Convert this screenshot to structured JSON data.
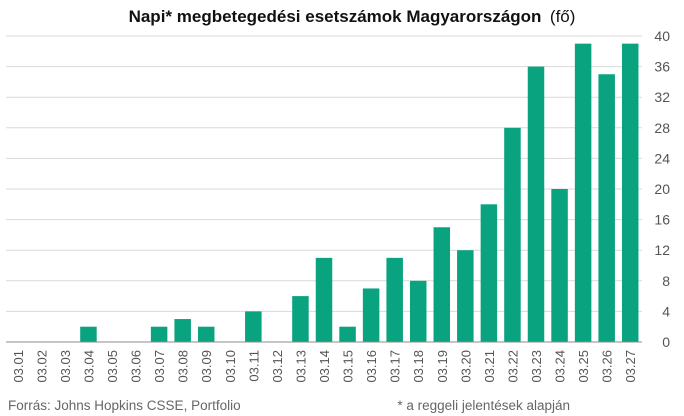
{
  "chart_data": {
    "type": "bar",
    "title": "Napi* megbetegedési esetszámok Magyarországon",
    "title_suffix": "(fő)",
    "categories": [
      "03.01",
      "03.02",
      "03.03",
      "03.04",
      "03.05",
      "03.06",
      "03.07",
      "03.08",
      "03.09",
      "03.10",
      "03.11",
      "03.12",
      "03.13",
      "03.14",
      "03.15",
      "03.16",
      "03.17",
      "03.18",
      "03.19",
      "03.20",
      "03.21",
      "03.22",
      "03.23",
      "03.24",
      "03.25",
      "03.26",
      "03.27"
    ],
    "values": [
      0,
      0,
      0,
      2,
      0,
      0,
      2,
      3,
      2,
      0,
      4,
      0,
      6,
      11,
      2,
      7,
      11,
      8,
      15,
      12,
      18,
      28,
      36,
      20,
      39,
      35,
      39
    ],
    "ylim": [
      0,
      40
    ],
    "yticks": [
      0,
      4,
      8,
      12,
      16,
      20,
      24,
      28,
      32,
      36,
      40
    ],
    "y_axis_side": "right",
    "grid": true,
    "legend": "none",
    "source": "Forrás: Johns Hopkins CSSE, Portfolio",
    "note": "* a reggeli jelentések alapján",
    "colors": {
      "bar": "#0aa37f",
      "grid": "#d9d9d9",
      "axis": "#8c8c8c",
      "text": "#555555"
    }
  }
}
